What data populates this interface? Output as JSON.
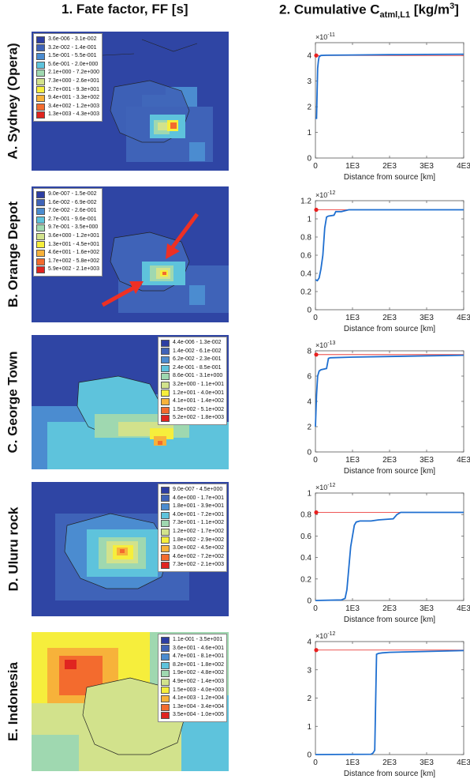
{
  "header": {
    "col1": "1. Fate factor, FF [s]",
    "col2_prefix": "2. Cumulative C",
    "col2_sub": "atml,L1",
    "col2_suffix": " [kg/m",
    "col2_sup": "3",
    "col2_end": "]"
  },
  "colors": {
    "ocean": "#2f45a4",
    "line": "#1f6fd0",
    "ref": "#e8201f",
    "legend": [
      "#2d3ea3",
      "#3f63b8",
      "#4b8cd0",
      "#5ec3dc",
      "#9fd8b0",
      "#d2e28c",
      "#f6ee3c",
      "#f7b23a",
      "#f36b2e",
      "#e02420"
    ]
  },
  "panels": [
    {
      "label": "A. Sydney (Opera)",
      "legend": [
        "3.6e-006 - 3.1e-002",
        "3.2e-002 - 1.4e-001",
        "1.5e-001 - 5.5e-001",
        "5.6e-001 - 2.0e+000",
        "2.1e+000 - 7.2e+000",
        "7.3e+000 - 2.6e+001",
        "2.7e+001 - 9.3e+001",
        "9.4e+001 - 3.3e+002",
        "3.4e+002 - 1.2e+003",
        "1.3e+003 - 4.3e+003"
      ]
    },
    {
      "label": "B. Orange Depot",
      "legend": [
        "9.0e-007 - 1.5e-002",
        "1.6e-002 - 6.9e-002",
        "7.0e-002 - 2.6e-001",
        "2.7e-001 - 9.6e-001",
        "9.7e-001 - 3.5e+000",
        "3.6e+000 - 1.2e+001",
        "1.3e+001 - 4.5e+001",
        "4.6e+001 - 1.6e+002",
        "1.7e+002 - 5.8e+002",
        "5.9e+002 - 2.1e+003"
      ]
    },
    {
      "label": "C. George Town",
      "legend": [
        "4.4e-006 - 1.3e-002",
        "1.4e-002 - 6.1e-002",
        "6.2e-002 - 2.3e-001",
        "2.4e-001 - 8.5e-001",
        "8.6e-001 - 3.1e+000",
        "3.2e+000 - 1.1e+001",
        "1.2e+001 - 4.0e+001",
        "4.1e+001 - 1.4e+002",
        "1.5e+002 - 5.1e+002",
        "5.2e+002 - 1.8e+003"
      ]
    },
    {
      "label": "D. Uluru rock",
      "legend": [
        "9.0e-007 - 4.5e+000",
        "4.6e+000 - 1.7e+001",
        "1.8e+001 - 3.9e+001",
        "4.0e+001 - 7.2e+001",
        "7.3e+001 - 1.1e+002",
        "1.2e+002 - 1.7e+002",
        "1.8e+002 - 2.9e+002",
        "3.0e+002 - 4.5e+002",
        "4.6e+002 - 7.2e+002",
        "7.3e+002 - 2.1e+003"
      ]
    },
    {
      "label": "E. Indonesia",
      "legend": [
        "1.1e-001 - 3.5e+001",
        "3.6e+001 - 4.6e+001",
        "4.7e+001 - 8.1e+001",
        "8.2e+001 - 1.8e+002",
        "1.9e+002 - 4.8e+002",
        "4.9e+002 - 1.4e+003",
        "1.5e+003 - 4.0e+003",
        "4.1e+003 - 1.2e+004",
        "1.3e+004 - 3.4e+004",
        "3.5e+004 - 1.0e+005"
      ]
    }
  ],
  "chart_data": [
    {
      "type": "line",
      "xlabel": "Distance from source [km]",
      "xticks": [
        "0",
        "1E3",
        "2E3",
        "3E3",
        "4E3"
      ],
      "xlim": [
        0,
        4000
      ],
      "ylim": [
        0,
        4.5
      ],
      "yticks": [
        "0",
        "1",
        "2",
        "3",
        "4"
      ],
      "ytick_values": [
        0,
        1,
        2,
        3,
        4
      ],
      "exponent": "×10",
      "exponent_power": "-11",
      "reference": 4.0,
      "x": [
        0,
        30,
        60,
        80,
        100,
        150,
        300,
        1000,
        2000,
        3000,
        4000
      ],
      "y": [
        1.55,
        1.55,
        3.5,
        3.8,
        3.95,
        4.0,
        4.01,
        4.02,
        4.03,
        4.04,
        4.05
      ]
    },
    {
      "type": "line",
      "xlabel": "Distance from source [km]",
      "xticks": [
        "0",
        "1E3",
        "2E3",
        "3E3",
        "4E3"
      ],
      "xlim": [
        0,
        4000
      ],
      "ylim": [
        0,
        1.2
      ],
      "yticks": [
        "0",
        "0.2",
        "0.4",
        "0.6",
        "0.8",
        "1",
        "1.2"
      ],
      "ytick_values": [
        0,
        0.2,
        0.4,
        0.6,
        0.8,
        1.0,
        1.2
      ],
      "exponent": "×10",
      "exponent_power": "-12",
      "reference": 1.1,
      "x": [
        0,
        50,
        100,
        150,
        200,
        250,
        300,
        350,
        500,
        550,
        700,
        800,
        900,
        1100,
        4000
      ],
      "y": [
        0.33,
        0.32,
        0.35,
        0.45,
        0.6,
        0.9,
        1.02,
        1.03,
        1.04,
        1.08,
        1.08,
        1.09,
        1.1,
        1.1,
        1.1
      ]
    },
    {
      "type": "line",
      "xlabel": "Distance from source [km]",
      "xticks": [
        "0",
        "1E3",
        "2E3",
        "3E3",
        "4E3"
      ],
      "xlim": [
        0,
        4000
      ],
      "ylim": [
        0,
        8
      ],
      "yticks": [
        "0",
        "2",
        "4",
        "6",
        "8"
      ],
      "ytick_values": [
        0,
        2,
        4,
        6,
        8
      ],
      "exponent": "×10",
      "exponent_power": "-13",
      "reference": 7.7,
      "x": [
        0,
        30,
        60,
        100,
        150,
        300,
        350,
        400,
        1000,
        2000,
        4000
      ],
      "y": [
        2.0,
        4.5,
        6.0,
        6.4,
        6.5,
        6.6,
        7.4,
        7.45,
        7.5,
        7.55,
        7.65
      ]
    },
    {
      "type": "line",
      "xlabel": "Distance from source [km]",
      "xticks": [
        "0",
        "1E3",
        "2E3",
        "3E3",
        "4E3"
      ],
      "xlim": [
        0,
        4000
      ],
      "ylim": [
        0,
        1.0
      ],
      "yticks": [
        "0",
        "0.2",
        "0.4",
        "0.6",
        "0.8",
        "1"
      ],
      "ytick_values": [
        0,
        0.2,
        0.4,
        0.6,
        0.8,
        1.0
      ],
      "exponent": "×10",
      "exponent_power": "-12",
      "reference": 0.82,
      "x": [
        0,
        700,
        800,
        850,
        900,
        950,
        1000,
        1050,
        1100,
        1200,
        1500,
        1700,
        2100,
        2200,
        2300,
        4000
      ],
      "y": [
        0,
        0.005,
        0.02,
        0.1,
        0.3,
        0.5,
        0.6,
        0.7,
        0.73,
        0.74,
        0.74,
        0.75,
        0.76,
        0.8,
        0.82,
        0.82
      ]
    },
    {
      "type": "line",
      "xlabel": "Distance from source [km]",
      "xticks": [
        "0",
        "1E3",
        "2E3",
        "3E3",
        "4E3"
      ],
      "xlim": [
        0,
        4000
      ],
      "ylim": [
        0,
        4
      ],
      "yticks": [
        "0",
        "1",
        "2",
        "3",
        "4"
      ],
      "ytick_values": [
        0,
        1,
        2,
        3,
        4
      ],
      "exponent": "×10",
      "exponent_power": "-12",
      "reference": 3.7,
      "x": [
        0,
        1500,
        1550,
        1600,
        1650,
        1700,
        1800,
        2000,
        3000,
        4000
      ],
      "y": [
        0,
        0.01,
        0.05,
        0.15,
        3.55,
        3.58,
        3.6,
        3.62,
        3.65,
        3.68
      ]
    }
  ]
}
